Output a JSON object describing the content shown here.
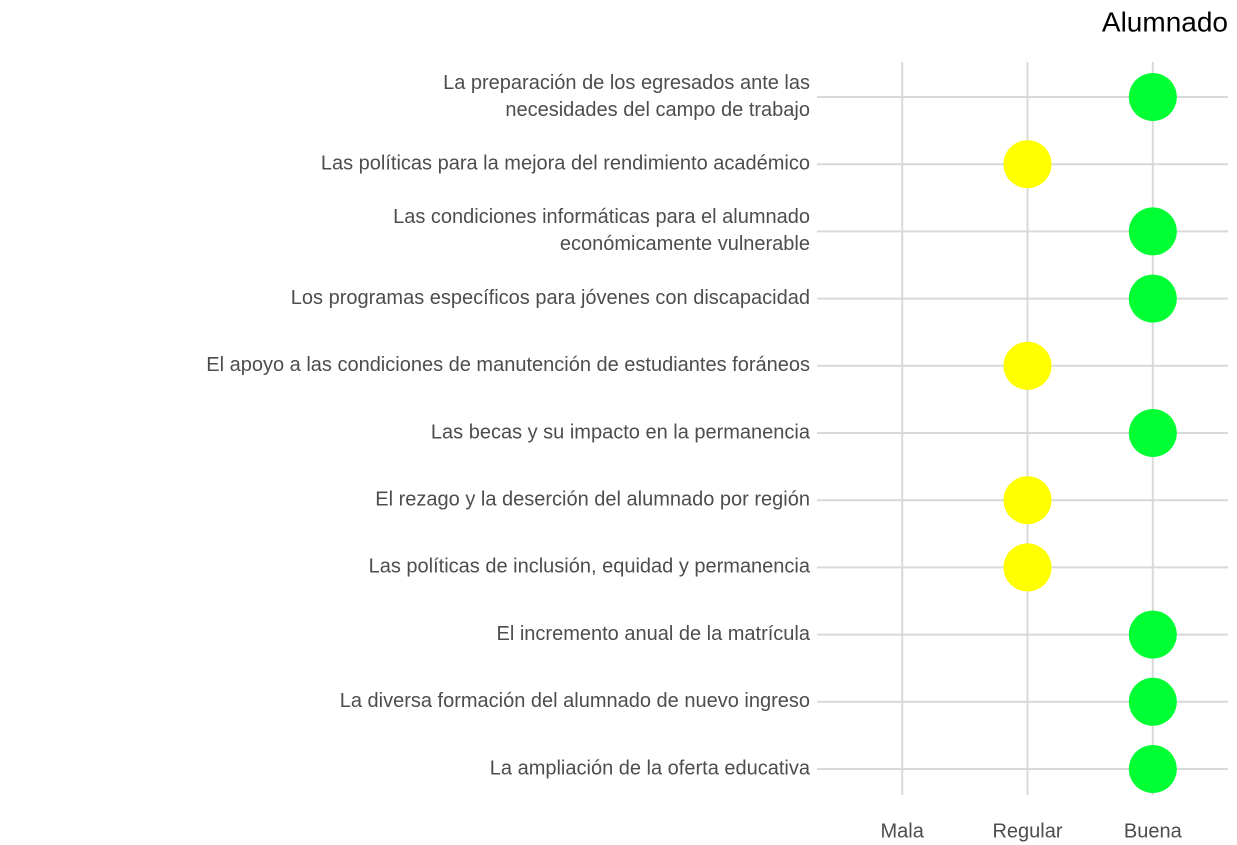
{
  "chart_data": {
    "type": "dot",
    "title": "Alumnado",
    "categories": [
      [
        "La preparación de los egresados ante las",
        "necesidades del campo de trabajo"
      ],
      "Las políticas para la mejora del rendimiento académico",
      [
        "Las condiciones informáticas para el alumnado",
        "económicamente vulnerable"
      ],
      "Los programas específicos para jóvenes con discapacidad",
      "El apoyo a las condiciones de manutención de estudiantes foráneos",
      "Las becas y su impacto en la permanencia",
      "El rezago y la deserción del alumnado por región",
      "Las políticas de inclusión, equidad y permanencia",
      "El incremento anual de la matrícula",
      "La diversa formación del alumnado de nuevo ingreso",
      "La ampliación de la oferta educativa"
    ],
    "values": [
      3,
      2,
      3,
      3,
      2,
      3,
      2,
      2,
      3,
      3,
      3
    ],
    "colors": [
      "#00ff33",
      "#ffff00",
      "#00ff33",
      "#00ff33",
      "#ffff00",
      "#00ff33",
      "#ffff00",
      "#ffff00",
      "#00ff33",
      "#00ff33",
      "#00ff33"
    ],
    "xlim": [
      0.32,
      3.6
    ],
    "xticks": [
      {
        "value": 1,
        "label": "Mala"
      },
      {
        "value": 2,
        "label": "Regular"
      },
      {
        "value": 3,
        "label": "Buena"
      }
    ],
    "grid": true
  }
}
